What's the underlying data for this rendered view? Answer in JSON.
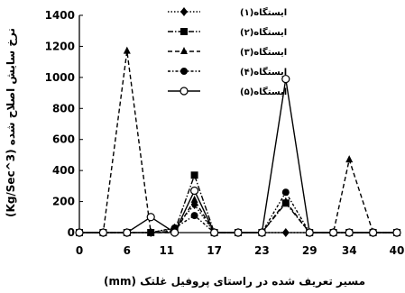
{
  "chart_data": {
    "type": "line",
    "xlabel": "مسیر تعریف شده در راستای پروفیل غلتک (mm)",
    "ylabel": "نرخ سایش اصلاح شده (Kg/Sec^3)",
    "x_ticks": [
      0,
      6,
      11,
      17,
      23,
      29,
      34,
      40
    ],
    "y_ticks": [
      0,
      200,
      400,
      600,
      800,
      1000,
      1200,
      1400
    ],
    "xlim": [
      0,
      40
    ],
    "ylim": [
      0,
      1400
    ],
    "grid": false,
    "legend_position": "top-center",
    "series": [
      {
        "name": "ایستگاه(۱)",
        "marker": "diamond",
        "dash": "dotted",
        "x": [
          0,
          3,
          6,
          9,
          12,
          14.5,
          17,
          20,
          23,
          26,
          29,
          32,
          34,
          37,
          40
        ],
        "y": [
          0,
          0,
          0,
          0,
          30,
          180,
          0,
          0,
          0,
          0,
          0,
          0,
          0,
          0,
          0
        ]
      },
      {
        "name": "ایستگاه(۲)",
        "marker": "square",
        "dash": "dashdot",
        "x": [
          0,
          3,
          6,
          9,
          12,
          14.5,
          17,
          20,
          23,
          26,
          29,
          32,
          34,
          37,
          40
        ],
        "y": [
          0,
          0,
          0,
          0,
          10,
          370,
          0,
          0,
          0,
          190,
          0,
          0,
          0,
          0,
          0
        ]
      },
      {
        "name": "ایستگاه(۳)",
        "marker": "triangle",
        "dash": "dashed",
        "x": [
          0,
          3,
          6,
          9,
          12,
          14.5,
          17,
          20,
          23,
          26,
          29,
          32,
          34,
          37,
          40
        ],
        "y": [
          0,
          0,
          1170,
          0,
          0,
          210,
          0,
          0,
          0,
          200,
          0,
          0,
          470,
          0,
          0
        ]
      },
      {
        "name": "ایستگاه(۴)",
        "marker": "circle",
        "dash": "dotdash",
        "x": [
          0,
          3,
          6,
          9,
          12,
          14.5,
          17,
          20,
          23,
          26,
          29,
          32,
          34,
          37,
          40
        ],
        "y": [
          0,
          0,
          0,
          0,
          30,
          110,
          0,
          0,
          0,
          260,
          0,
          0,
          0,
          0,
          0
        ]
      },
      {
        "name": "ایستگاه(۵)",
        "marker": "open-circle",
        "dash": "solid",
        "x": [
          0,
          3,
          6,
          9,
          12,
          14.5,
          17,
          20,
          23,
          26,
          29,
          32,
          34,
          37,
          40
        ],
        "y": [
          0,
          0,
          0,
          100,
          0,
          270,
          0,
          0,
          0,
          990,
          0,
          0,
          0,
          0,
          0
        ]
      }
    ]
  }
}
